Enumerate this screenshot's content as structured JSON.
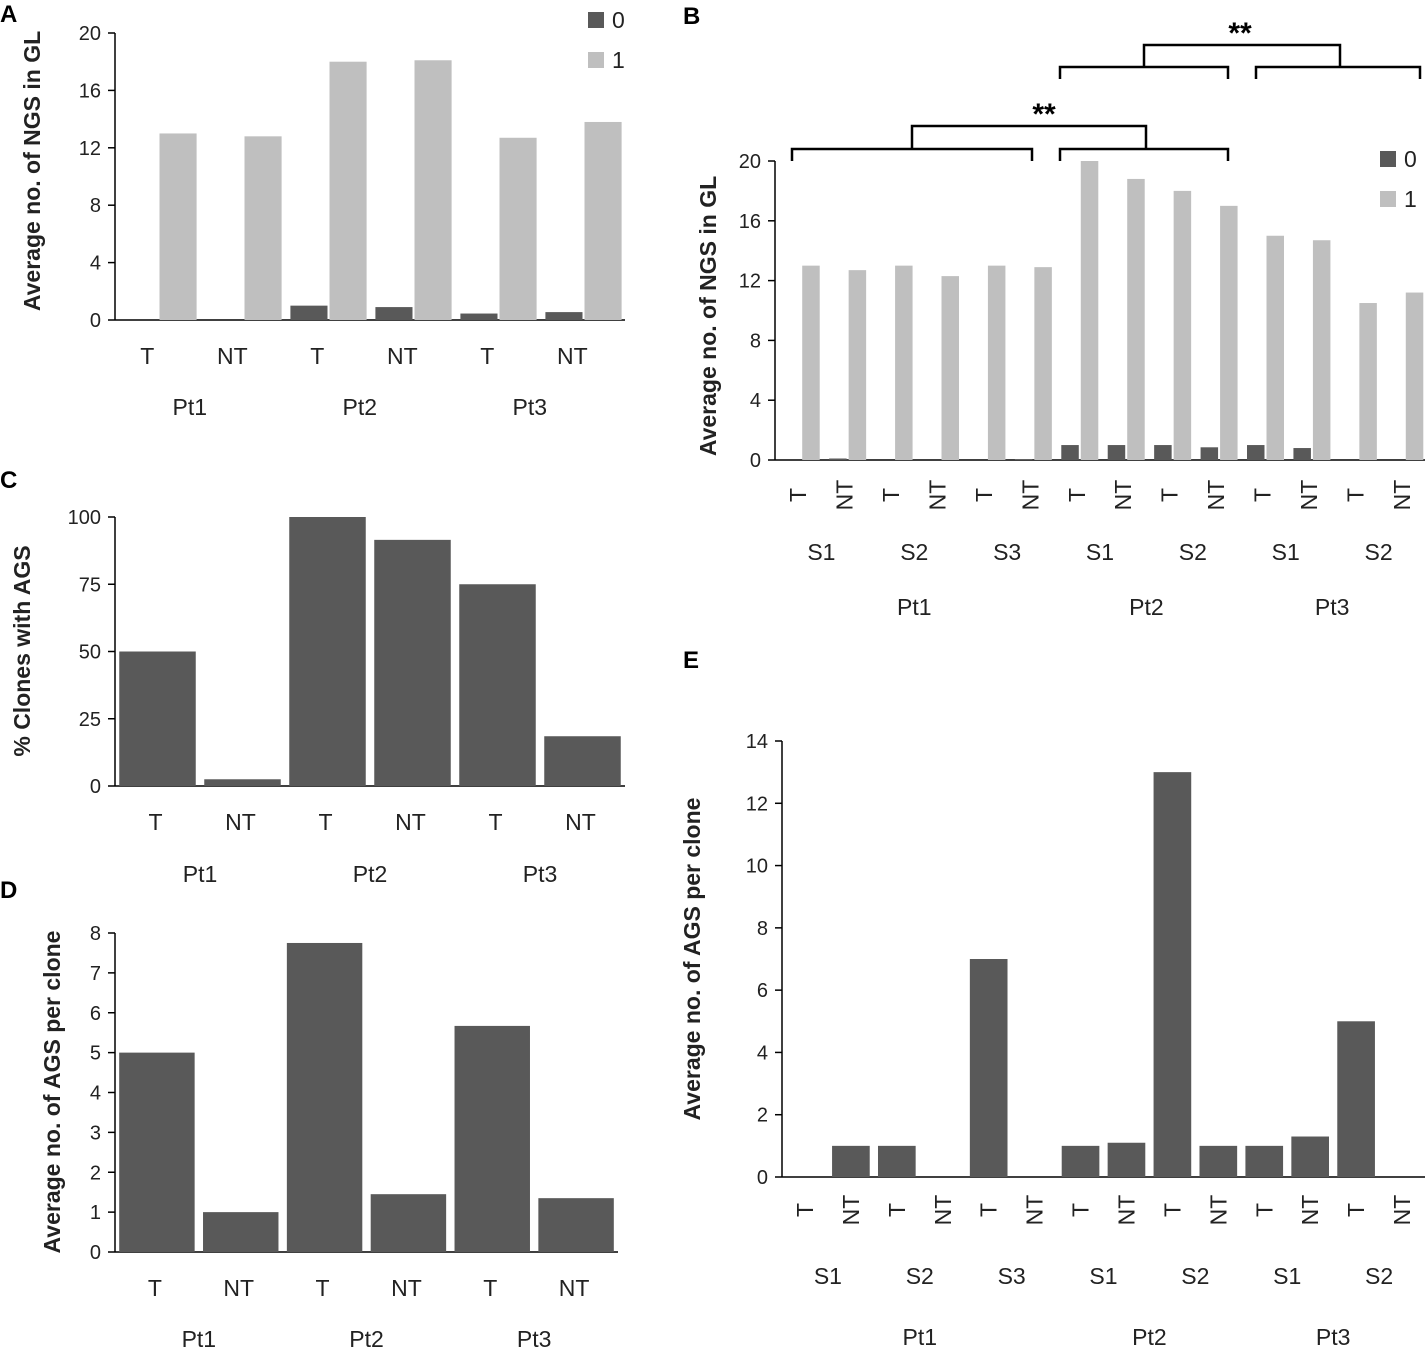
{
  "colors": {
    "series0": "#595959",
    "series1": "#BFBFBF",
    "single": "#595959"
  },
  "chart_data": [
    {
      "panel": "A",
      "type": "bar",
      "ylabel": "Average no. of NGS in GL",
      "ylim": [
        0,
        20
      ],
      "yticks": [
        "0",
        "4",
        "8",
        "12",
        "16",
        "20"
      ],
      "categories": [
        "T",
        "NT",
        "T",
        "NT",
        "T",
        "NT"
      ],
      "groups": [
        "Pt1",
        "Pt2",
        "Pt3"
      ],
      "legend": [
        "0",
        "1"
      ],
      "series": [
        {
          "name": "0",
          "values": [
            0,
            0,
            1.0,
            0.9,
            0.45,
            0.55
          ]
        },
        {
          "name": "1",
          "values": [
            13.0,
            12.8,
            18.0,
            18.1,
            12.7,
            13.8
          ]
        }
      ]
    },
    {
      "panel": "B",
      "type": "bar",
      "ylabel": "Average no. of NGS in GL",
      "ylim": [
        0,
        20
      ],
      "yticks": [
        "0",
        "4",
        "8",
        "12",
        "16",
        "20"
      ],
      "categories": [
        "T",
        "NT",
        "T",
        "NT",
        "T",
        "NT",
        "T",
        "NT",
        "T",
        "NT",
        "T",
        "NT",
        "T",
        "NT"
      ],
      "subgroups": [
        "S1",
        "S2",
        "S3",
        "S1",
        "S2",
        "S1",
        "S2"
      ],
      "groups": [
        "Pt1",
        "Pt2",
        "Pt3"
      ],
      "legend": [
        "0",
        "1"
      ],
      "significance": [
        "**",
        "**"
      ],
      "series": [
        {
          "name": "0",
          "values": [
            0,
            0.1,
            0,
            0,
            0,
            0.05,
            1.0,
            1.0,
            1.0,
            0.85,
            1.0,
            0.8,
            0,
            0
          ]
        },
        {
          "name": "1",
          "values": [
            13.0,
            12.7,
            13.0,
            12.3,
            13.0,
            12.9,
            20.0,
            18.8,
            18.0,
            17.0,
            15.0,
            14.7,
            10.5,
            11.2
          ]
        }
      ]
    },
    {
      "panel": "C",
      "type": "bar",
      "ylabel": "% Clones with AGS",
      "ylim": [
        0,
        100
      ],
      "yticks": [
        "0",
        "25",
        "50",
        "75",
        "100"
      ],
      "categories": [
        "T",
        "NT",
        "T",
        "NT",
        "T",
        "NT"
      ],
      "groups": [
        "Pt1",
        "Pt2",
        "Pt3"
      ],
      "values": [
        50,
        2.5,
        100,
        91.5,
        75,
        18.5
      ]
    },
    {
      "panel": "D",
      "type": "bar",
      "ylabel": "Average no. of AGS per clone",
      "ylim": [
        0,
        8
      ],
      "yticks": [
        "0",
        "1",
        "2",
        "3",
        "4",
        "5",
        "6",
        "7",
        "8"
      ],
      "categories": [
        "T",
        "NT",
        "T",
        "NT",
        "T",
        "NT"
      ],
      "groups": [
        "Pt1",
        "Pt2",
        "Pt3"
      ],
      "values": [
        5.0,
        1.0,
        7.75,
        1.45,
        5.67,
        1.35
      ]
    },
    {
      "panel": "E",
      "type": "bar",
      "ylabel": "Average no. of AGS per clone",
      "ylim": [
        0,
        14
      ],
      "yticks": [
        "0",
        "2",
        "4",
        "6",
        "8",
        "10",
        "12",
        "14"
      ],
      "categories": [
        "T",
        "NT",
        "T",
        "NT",
        "T",
        "NT",
        "T",
        "NT",
        "T",
        "NT",
        "T",
        "NT",
        "T",
        "NT"
      ],
      "subgroups": [
        "S1",
        "S2",
        "S3",
        "S1",
        "S2",
        "S1",
        "S2"
      ],
      "groups": [
        "Pt1",
        "Pt2",
        "Pt3"
      ],
      "values": [
        0,
        1.0,
        1.0,
        0,
        7.0,
        0,
        1.0,
        1.1,
        13.0,
        1.0,
        1.0,
        1.3,
        5.0,
        0
      ]
    }
  ]
}
